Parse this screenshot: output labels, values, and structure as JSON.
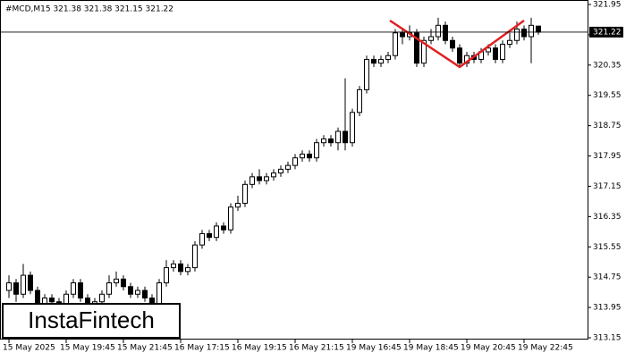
{
  "chart_data": {
    "type": "candlestick",
    "title": "#MCD,M15  321.38 321.38 321.15 321.22",
    "watermark": "InstaFintech",
    "categories": [
      "15 May 2025",
      null,
      null,
      null,
      null,
      null,
      null,
      null,
      "15 May 19:45",
      null,
      null,
      null,
      null,
      null,
      null,
      null,
      "15 May 21:45",
      null,
      null,
      null,
      null,
      null,
      null,
      null,
      "16 May 17:15",
      null,
      null,
      null,
      null,
      null,
      null,
      null,
      "16 May 19:15",
      null,
      null,
      null,
      null,
      null,
      null,
      null,
      "16 May 21:15",
      null,
      null,
      null,
      null,
      null,
      null,
      null,
      "19 May 16:45",
      null,
      null,
      null,
      null,
      null,
      null,
      null,
      "19 May 18:45",
      null,
      null,
      null,
      null,
      null,
      null,
      null,
      "19 May 20:45",
      null,
      null,
      null,
      null,
      null,
      null,
      null,
      "19 May 22:45",
      null,
      null
    ],
    "open": [
      314.4,
      314.6,
      314.3,
      314.8,
      314.4,
      314.0,
      314.2,
      314.1,
      314.0,
      314.3,
      314.6,
      314.2,
      314.0,
      314.1,
      314.3,
      314.6,
      314.7,
      314.5,
      314.3,
      314.4,
      314.2,
      314.0,
      314.6,
      315.0,
      315.1,
      314.9,
      315.0,
      315.6,
      315.9,
      315.8,
      316.1,
      316.0,
      316.6,
      316.7,
      317.2,
      317.4,
      317.3,
      317.4,
      317.5,
      317.6,
      317.7,
      317.9,
      318.0,
      317.9,
      318.3,
      318.4,
      318.3,
      318.6,
      318.3,
      319.1,
      319.7,
      320.5,
      320.4,
      320.5,
      320.6,
      321.2,
      321.1,
      321.2,
      320.4,
      321.0,
      321.1,
      321.4,
      321.0,
      320.8,
      320.4,
      320.6,
      320.5,
      320.7,
      320.8,
      320.5,
      320.9,
      321.0,
      321.3,
      321.1,
      321.38
    ],
    "high": [
      314.8,
      314.7,
      315.1,
      314.9,
      314.5,
      314.3,
      314.3,
      314.2,
      314.4,
      314.7,
      314.7,
      314.3,
      314.2,
      314.4,
      314.8,
      314.9,
      314.8,
      314.6,
      314.5,
      314.5,
      314.3,
      314.7,
      315.2,
      315.2,
      315.2,
      315.1,
      315.7,
      316.0,
      316.0,
      316.2,
      316.2,
      316.7,
      316.9,
      317.3,
      317.5,
      317.6,
      317.5,
      317.6,
      317.7,
      317.8,
      318.0,
      318.1,
      318.1,
      318.4,
      318.5,
      318.5,
      318.7,
      320.0,
      319.2,
      319.8,
      320.6,
      320.6,
      320.6,
      320.7,
      321.3,
      321.3,
      321.4,
      321.3,
      321.1,
      321.3,
      321.6,
      321.5,
      321.1,
      320.9,
      320.7,
      320.7,
      320.8,
      320.9,
      320.9,
      321.0,
      321.2,
      321.5,
      321.4,
      321.6,
      321.38
    ],
    "low": [
      314.2,
      314.1,
      314.2,
      314.3,
      313.9,
      313.8,
      313.9,
      313.9,
      313.9,
      314.2,
      314.1,
      313.9,
      313.9,
      314.0,
      314.2,
      314.5,
      314.4,
      314.2,
      314.2,
      314.1,
      313.8,
      313.9,
      314.5,
      314.9,
      314.8,
      314.8,
      314.9,
      315.5,
      315.7,
      315.7,
      315.9,
      315.9,
      316.5,
      316.6,
      317.1,
      317.2,
      317.2,
      317.3,
      317.4,
      317.5,
      317.6,
      317.8,
      317.8,
      317.8,
      318.2,
      318.2,
      318.1,
      318.1,
      318.2,
      319.0,
      319.6,
      320.3,
      320.3,
      320.4,
      320.5,
      320.9,
      321.0,
      320.3,
      320.3,
      320.9,
      321.0,
      320.9,
      320.7,
      320.3,
      320.3,
      320.4,
      320.4,
      320.6,
      320.4,
      320.4,
      320.8,
      320.9,
      321.0,
      320.4,
      321.15
    ],
    "close": [
      314.6,
      314.3,
      314.8,
      314.4,
      314.0,
      314.2,
      314.1,
      314.0,
      314.3,
      314.6,
      314.2,
      314.0,
      314.1,
      314.3,
      314.6,
      314.7,
      314.5,
      314.3,
      314.4,
      314.2,
      314.0,
      314.6,
      315.0,
      315.1,
      314.9,
      315.0,
      315.6,
      315.9,
      315.8,
      316.1,
      316.0,
      316.6,
      316.7,
      317.2,
      317.4,
      317.3,
      317.4,
      317.5,
      317.6,
      317.7,
      317.9,
      318.0,
      317.9,
      318.3,
      318.4,
      318.3,
      318.6,
      318.3,
      319.1,
      319.7,
      320.5,
      320.4,
      320.5,
      320.6,
      321.2,
      321.1,
      321.2,
      320.4,
      321.0,
      321.1,
      321.4,
      321.0,
      320.8,
      320.4,
      320.6,
      320.5,
      320.7,
      320.8,
      320.5,
      320.9,
      321.0,
      321.3,
      321.1,
      321.4,
      321.22
    ],
    "current_price": 321.22,
    "ylim": [
      313.15,
      321.95
    ],
    "yticks": [
      313.15,
      313.95,
      314.75,
      315.55,
      316.35,
      317.15,
      317.95,
      318.75,
      319.55,
      320.35,
      321.15,
      321.95
    ]
  }
}
